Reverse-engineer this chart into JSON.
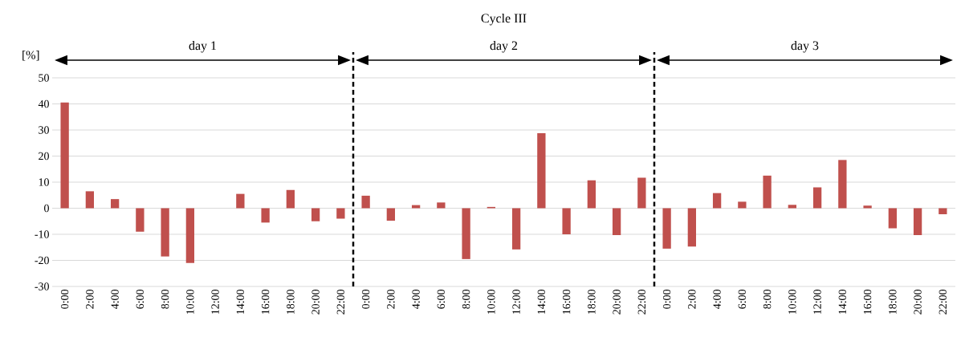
{
  "chart_data": {
    "type": "bar",
    "title": "Cycle III",
    "ylabel": "[%]",
    "categories": [
      "0:00",
      "2:00",
      "4:00",
      "6:00",
      "8:00",
      "10:00",
      "12:00",
      "14:00",
      "16:00",
      "18:00",
      "20:00",
      "22:00",
      "0:00",
      "2:00",
      "4:00",
      "6:00",
      "8:00",
      "10:00",
      "12:00",
      "14:00",
      "16:00",
      "18:00",
      "20:00",
      "22:00",
      "0:00",
      "2:00",
      "4:00",
      "6:00",
      "8:00",
      "10:00",
      "12:00",
      "14:00",
      "16:00",
      "18:00",
      "20:00",
      "22:00"
    ],
    "values": [
      40.5,
      6.5,
      3.5,
      -9,
      -18.5,
      -21,
      0,
      5.5,
      -5.5,
      7,
      -5,
      -4,
      4.8,
      -4.8,
      1.2,
      2.2,
      -19.5,
      0.5,
      -15.8,
      28.8,
      -10,
      10.7,
      -10.3,
      11.7,
      -15.5,
      -14.7,
      5.8,
      2.5,
      12.5,
      1.3,
      8,
      18.5,
      1,
      -7.7,
      -10.3,
      -2.3
    ],
    "color": "#c0504d",
    "ylim": [
      -30,
      50
    ],
    "yticks": [
      -30,
      -20,
      -10,
      0,
      10,
      20,
      30,
      40,
      50
    ],
    "grid": "y",
    "annotations": [
      "day 1",
      "day 2",
      "day 3"
    ]
  }
}
